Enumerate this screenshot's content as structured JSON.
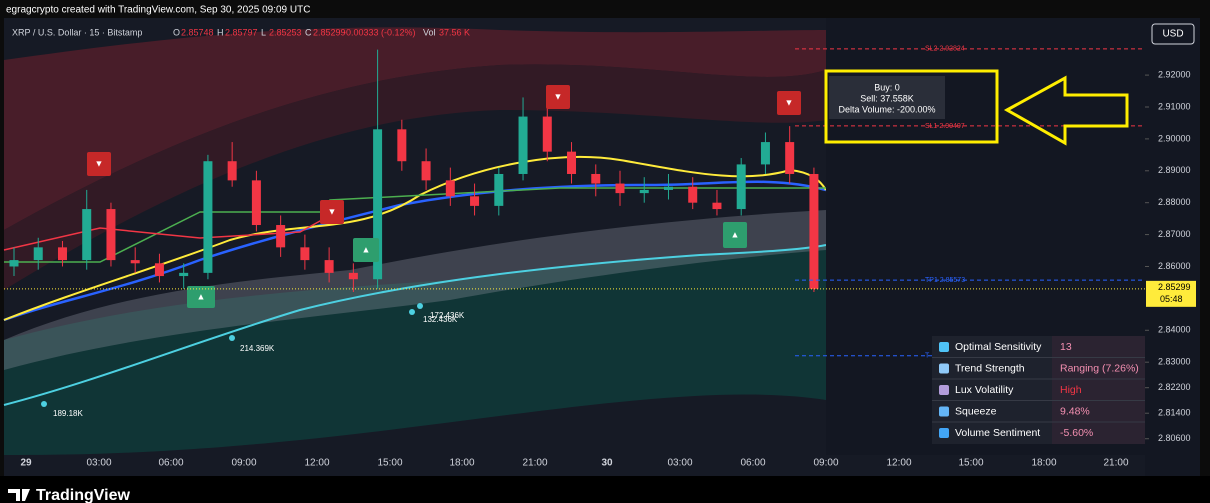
{
  "header": "egragcrypto created with TradingView.com, Sep 30, 2025 09:09 UTC",
  "currency": "USD",
  "footer": "TradingView",
  "chart_data": {
    "type": "candlestick",
    "title": "XRP / U.S. Dollar · 15 · Bitstamp",
    "legend": [
      {
        "key": "O",
        "value": 2.85748
      },
      {
        "key": "H",
        "value": 2.85797
      },
      {
        "key": "L",
        "value": 2.85253
      },
      {
        "key": "C",
        "value": 2.85299
      }
    ],
    "change": "-0.00333 (-0.12%)",
    "volume": {
      "key": "Vol",
      "value": "37.56 K"
    },
    "open": [
      2.86,
      2.862,
      2.866,
      2.862,
      2.878,
      2.862,
      2.861,
      2.857,
      2.858,
      2.893,
      2.887,
      2.873,
      2.866,
      2.862,
      2.858,
      2.856,
      2.903,
      2.893,
      2.887,
      2.882,
      2.879,
      2.889,
      2.907,
      2.896,
      2.889,
      2.886,
      2.883,
      2.884,
      2.885,
      2.88,
      2.878,
      2.892,
      2.899,
      2.889
    ],
    "high": [
      2.866,
      2.869,
      2.868,
      2.884,
      2.88,
      2.866,
      2.864,
      2.861,
      2.895,
      2.899,
      2.89,
      2.876,
      2.87,
      2.866,
      2.861,
      2.928,
      2.906,
      2.897,
      2.891,
      2.886,
      2.891,
      2.913,
      2.91,
      2.899,
      2.892,
      2.89,
      2.888,
      2.889,
      2.888,
      2.884,
      2.894,
      2.902,
      2.904,
      2.891
    ],
    "low": [
      2.857,
      2.859,
      2.86,
      2.859,
      2.86,
      2.858,
      2.855,
      2.853,
      2.856,
      2.885,
      2.871,
      2.863,
      2.859,
      2.855,
      2.852,
      2.853,
      2.89,
      2.884,
      2.879,
      2.876,
      2.876,
      2.887,
      2.893,
      2.886,
      2.882,
      2.879,
      2.88,
      2.881,
      2.878,
      2.876,
      2.876,
      2.889,
      2.886,
      2.852
    ],
    "close": [
      2.862,
      2.866,
      2.862,
      2.878,
      2.862,
      2.861,
      2.857,
      2.858,
      2.893,
      2.887,
      2.873,
      2.866,
      2.862,
      2.858,
      2.856,
      2.903,
      2.893,
      2.887,
      2.882,
      2.879,
      2.889,
      2.907,
      2.896,
      2.889,
      2.886,
      2.883,
      2.884,
      2.885,
      2.88,
      2.878,
      2.892,
      2.899,
      2.889,
      2.85299
    ],
    "up_color": "#22ab94",
    "down_color": "#f23645",
    "grid": false,
    "ylim": [
      2.8009,
      2.9379
    ],
    "yticks": [
      {
        "value": 2.92,
        "label": "2.92000"
      },
      {
        "value": 2.91,
        "label": "2.91000"
      },
      {
        "value": 2.9,
        "label": "2.90000"
      },
      {
        "value": 2.89,
        "label": "2.89000"
      },
      {
        "value": 2.88,
        "label": "2.88000"
      },
      {
        "value": 2.87,
        "label": "2.87000"
      },
      {
        "value": 2.86,
        "label": "2.86000"
      },
      {
        "value": 2.84,
        "label": "2.84000"
      },
      {
        "value": 2.83,
        "label": "2.83000"
      },
      {
        "value": 2.822,
        "label": "2.82200"
      },
      {
        "value": 2.814,
        "label": "2.81400"
      },
      {
        "value": 2.806,
        "label": "2.80600"
      }
    ],
    "xtick_labels": [
      "29",
      "03:00",
      "06:00",
      "09:00",
      "12:00",
      "15:00",
      "18:00",
      "21:00",
      "30",
      "03:00",
      "06:00",
      "09:00",
      "12:00",
      "15:00",
      "18:00",
      "21:00"
    ],
    "last_price": {
      "value": 2.85299,
      "label": "2.85299"
    },
    "countdown": "05:48",
    "levels": [
      {
        "label": "SL2 2.92824",
        "value": 2.92824,
        "color": "#f23645"
      },
      {
        "label": "SL1 2.90407",
        "value": 2.90407,
        "color": "#f23645"
      },
      {
        "label": "TP1 2.85573",
        "value": 2.85573,
        "color": "#2962ff"
      },
      {
        "label": "T",
        "value": 2.832,
        "color": "#2962ff"
      }
    ],
    "volume_labels": [
      "189.18K",
      "214.369K",
      "132.436K",
      "172.436K"
    ]
  },
  "tooltip": {
    "lines": [
      "Buy: 0",
      "Sell: 37.558K",
      "Delta Volume: -200.00%"
    ]
  },
  "dashboard": {
    "rows": [
      {
        "label": "Optimal Sensitivity",
        "value": "13"
      },
      {
        "label": "Trend Strength",
        "value": "Ranging (7.26%)"
      },
      {
        "label": "Lux Volatility",
        "value": "High"
      },
      {
        "label": "Squeeze",
        "value": "9.48%"
      },
      {
        "label": "Volume Sentiment",
        "value": "-5.60%"
      }
    ]
  }
}
